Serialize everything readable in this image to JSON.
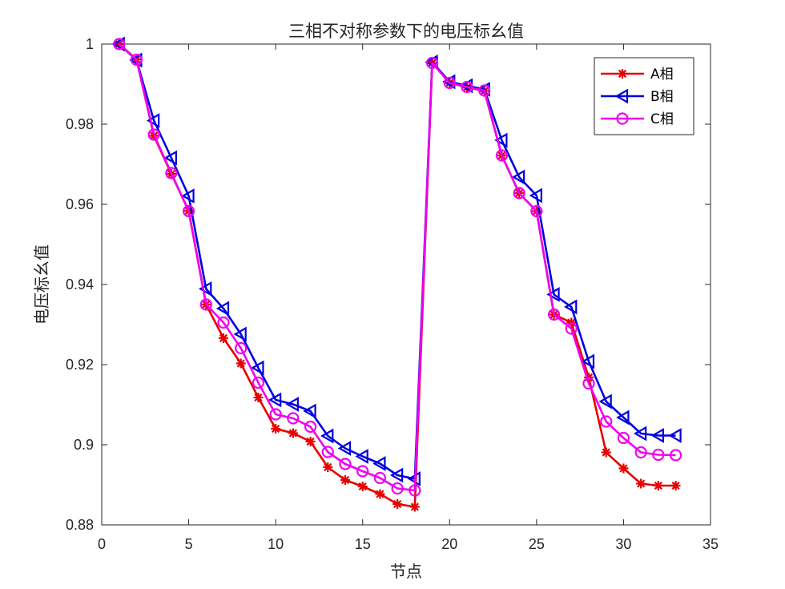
{
  "chart_data": {
    "type": "line",
    "title": "三相不对称参数下的电压标幺值",
    "xlabel": "节点",
    "ylabel": "电压标幺值",
    "xlim": [
      0,
      35
    ],
    "ylim": [
      0.88,
      1.0
    ],
    "xticks": [
      0,
      5,
      10,
      15,
      20,
      25,
      30,
      35
    ],
    "xtick_labels": [
      "0",
      "5",
      "10",
      "15",
      "20",
      "25",
      "30",
      "35"
    ],
    "yticks": [
      0.88,
      0.9,
      0.92,
      0.94,
      0.96,
      0.98,
      1.0
    ],
    "ytick_labels": [
      "0.88",
      "0.9",
      "0.92",
      "0.94",
      "0.96",
      "0.98",
      "1"
    ],
    "grid": false,
    "legend_position": "top-right",
    "x": [
      1,
      2,
      3,
      4,
      5,
      6,
      7,
      8,
      9,
      10,
      11,
      12,
      13,
      14,
      15,
      16,
      17,
      18,
      19,
      20,
      21,
      22,
      23,
      24,
      25,
      26,
      27,
      28,
      29,
      30,
      31,
      32,
      33
    ],
    "series": [
      {
        "name": "A相",
        "color": "#e60000",
        "marker": "asterisk",
        "values": [
          1.0,
          0.9962,
          0.9771,
          0.9676,
          0.9584,
          0.935,
          0.9266,
          0.9203,
          0.9118,
          0.904,
          0.9029,
          0.9008,
          0.8944,
          0.8912,
          0.8896,
          0.8877,
          0.8852,
          0.8845,
          0.9953,
          0.9903,
          0.9892,
          0.9883,
          0.9722,
          0.9628,
          0.9583,
          0.9325,
          0.9305,
          0.9168,
          0.8981,
          0.8941,
          0.8903,
          0.8898,
          0.8898
        ]
      },
      {
        "name": "B相",
        "color": "#0000e0",
        "marker": "triangle-left",
        "values": [
          1.0,
          0.996,
          0.9809,
          0.9716,
          0.9621,
          0.9389,
          0.934,
          0.9276,
          0.9192,
          0.9112,
          0.9101,
          0.9084,
          0.9022,
          0.8991,
          0.8971,
          0.8953,
          0.8924,
          0.8915,
          0.9955,
          0.9906,
          0.9896,
          0.9887,
          0.976,
          0.9668,
          0.9622,
          0.9375,
          0.9344,
          0.9208,
          0.9108,
          0.9068,
          0.9028,
          0.9023,
          0.9023
        ]
      },
      {
        "name": "C相",
        "color": "#f000f0",
        "marker": "circle",
        "values": [
          1.0,
          0.9961,
          0.9774,
          0.9678,
          0.9583,
          0.935,
          0.9305,
          0.9241,
          0.9155,
          0.9076,
          0.9066,
          0.9045,
          0.8982,
          0.8952,
          0.8934,
          0.8917,
          0.8891,
          0.8886,
          0.9953,
          0.9903,
          0.9893,
          0.9884,
          0.9722,
          0.9628,
          0.9583,
          0.9325,
          0.929,
          0.9153,
          0.9058,
          0.9017,
          0.8981,
          0.8975,
          0.8974
        ]
      }
    ]
  }
}
